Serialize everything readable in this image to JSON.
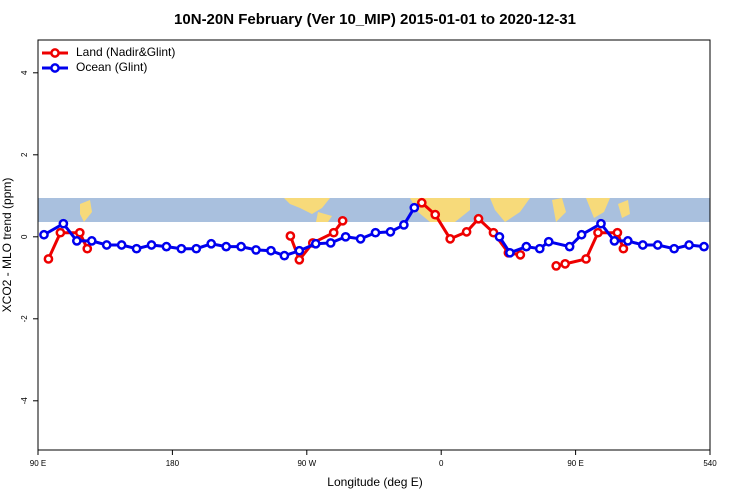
{
  "chart_data": {
    "type": "line",
    "title": "10N-20N February (Ver 10_MIP)   2015-01-01 to 2020-12-31",
    "x_label": "Longitude (deg E)",
    "y_label": "XCO2 - MLO trend (ppm)",
    "xlim": [
      90,
      540
    ],
    "xticks": [
      {
        "value": 90,
        "label": "90 E"
      },
      180,
      {
        "value": 270,
        "label": "90 W"
      },
      {
        "value": 360,
        "label": "0"
      },
      {
        "value": 450,
        "label": "90 E"
      },
      540
    ],
    "ylim": [
      -5.2,
      4.8
    ],
    "yticks": [
      -4,
      -2,
      0,
      2,
      4
    ],
    "legend": "top-left",
    "series": [
      {
        "name": "Land (Nadir&Glint)",
        "color": "#ee0000",
        "x": [
          97,
          105,
          118,
          123,
          null,
          259,
          265,
          274,
          288,
          294,
          null,
          347,
          356,
          366,
          377,
          385,
          395,
          405,
          413,
          null,
          437,
          443,
          457,
          465,
          478,
          482
        ],
        "values": [
          -0.54,
          0.1,
          0.1,
          -0.29,
          null,
          0.02,
          -0.56,
          -0.15,
          0.1,
          0.39,
          null,
          0.83,
          0.54,
          -0.05,
          0.12,
          0.44,
          0.1,
          -0.39,
          -0.44,
          null,
          -0.71,
          -0.66,
          -0.54,
          0.1,
          0.1,
          -0.29
        ]
      },
      {
        "name": "Ocean (Glint)",
        "color": "#0000ee",
        "x": [
          94,
          107,
          116,
          126,
          136,
          146,
          156,
          166,
          176,
          186,
          196,
          206,
          216,
          226,
          236,
          246,
          255,
          265,
          276,
          286,
          296,
          306,
          316,
          326,
          335,
          342,
          null,
          399,
          406,
          417,
          426,
          432,
          446,
          454,
          467,
          476,
          485,
          495,
          505,
          516,
          526,
          536
        ],
        "values": [
          0.05,
          0.32,
          -0.1,
          -0.1,
          -0.2,
          -0.2,
          -0.29,
          -0.2,
          -0.24,
          -0.29,
          -0.29,
          -0.17,
          -0.24,
          -0.24,
          -0.32,
          -0.34,
          -0.46,
          -0.34,
          -0.17,
          -0.15,
          0,
          -0.05,
          0.1,
          0.12,
          0.29,
          0.71,
          null,
          0,
          -0.39,
          -0.24,
          -0.29,
          -0.12,
          -0.24,
          0.05,
          0.32,
          -0.1,
          -0.1,
          -0.2,
          -0.2,
          -0.29,
          -0.2,
          -0.24
        ]
      }
    ]
  }
}
